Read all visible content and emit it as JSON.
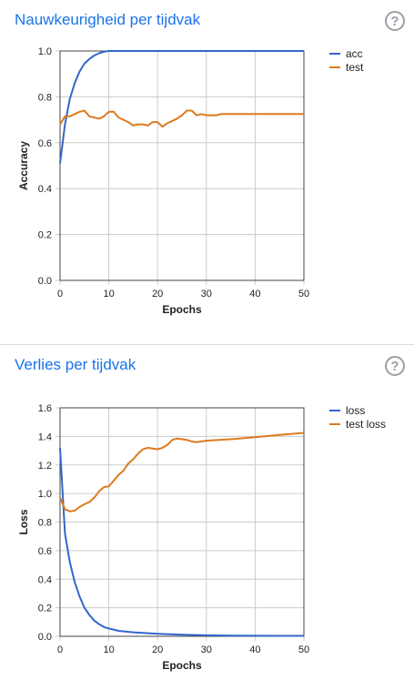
{
  "charts": [
    {
      "title": "Nauwkeurigheid per tijdvak",
      "help_icon": "help-circle-icon",
      "chart_data": {
        "type": "line",
        "xlabel": "Epochs",
        "ylabel": "Accuracy",
        "xlim": [
          0,
          50
        ],
        "ylim": [
          0,
          1.0
        ],
        "xticks": [
          "0",
          "10",
          "20",
          "30",
          "40",
          "50"
        ],
        "yticks": [
          "0.0",
          "0.2",
          "0.4",
          "0.6",
          "0.8",
          "1.0"
        ],
        "grid": true,
        "legend_position": "top-right",
        "series": [
          {
            "name": "acc",
            "color": "#3366cc",
            "points": [
              [
                0,
                0.51
              ],
              [
                1,
                0.68
              ],
              [
                2,
                0.79
              ],
              [
                3,
                0.86
              ],
              [
                4,
                0.91
              ],
              [
                5,
                0.945
              ],
              [
                6,
                0.965
              ],
              [
                7,
                0.98
              ],
              [
                8,
                0.99
              ],
              [
                9,
                0.997
              ],
              [
                10,
                1.0
              ],
              [
                15,
                1.0
              ],
              [
                20,
                1.0
              ],
              [
                25,
                1.0
              ],
              [
                30,
                1.0
              ],
              [
                35,
                1.0
              ],
              [
                40,
                1.0
              ],
              [
                45,
                1.0
              ],
              [
                50,
                1.0
              ]
            ]
          },
          {
            "name": "test",
            "color": "#dd7a1f",
            "points": [
              [
                0,
                0.68
              ],
              [
                1,
                0.715
              ],
              [
                2,
                0.715
              ],
              [
                3,
                0.725
              ],
              [
                4,
                0.735
              ],
              [
                5,
                0.74
              ],
              [
                6,
                0.715
              ],
              [
                7,
                0.71
              ],
              [
                8,
                0.705
              ],
              [
                9,
                0.715
              ],
              [
                10,
                0.735
              ],
              [
                11,
                0.735
              ],
              [
                12,
                0.71
              ],
              [
                13,
                0.7
              ],
              [
                14,
                0.69
              ],
              [
                15,
                0.675
              ],
              [
                16,
                0.68
              ],
              [
                17,
                0.68
              ],
              [
                18,
                0.675
              ],
              [
                19,
                0.69
              ],
              [
                20,
                0.69
              ],
              [
                21,
                0.67
              ],
              [
                22,
                0.685
              ],
              [
                23,
                0.695
              ],
              [
                24,
                0.705
              ],
              [
                25,
                0.72
              ],
              [
                26,
                0.74
              ],
              [
                27,
                0.74
              ],
              [
                28,
                0.72
              ],
              [
                29,
                0.725
              ],
              [
                30,
                0.72
              ],
              [
                31,
                0.72
              ],
              [
                32,
                0.72
              ],
              [
                33,
                0.725
              ],
              [
                35,
                0.725
              ],
              [
                40,
                0.725
              ],
              [
                45,
                0.725
              ],
              [
                50,
                0.725
              ]
            ]
          }
        ]
      }
    },
    {
      "title": "Verlies per tijdvak",
      "help_icon": "help-circle-icon",
      "chart_data": {
        "type": "line",
        "xlabel": "Epochs",
        "ylabel": "Loss",
        "xlim": [
          0,
          50
        ],
        "ylim": [
          0,
          1.6
        ],
        "xticks": [
          "0",
          "10",
          "20",
          "30",
          "40",
          "50"
        ],
        "yticks": [
          "0.0",
          "0.2",
          "0.4",
          "0.6",
          "0.8",
          "1.0",
          "1.2",
          "1.4",
          "1.6"
        ],
        "grid": true,
        "legend_position": "top-right",
        "series": [
          {
            "name": "loss",
            "color": "#3366cc",
            "points": [
              [
                0,
                1.32
              ],
              [
                1,
                0.72
              ],
              [
                2,
                0.52
              ],
              [
                3,
                0.38
              ],
              [
                4,
                0.28
              ],
              [
                5,
                0.2
              ],
              [
                6,
                0.15
              ],
              [
                7,
                0.11
              ],
              [
                8,
                0.085
              ],
              [
                9,
                0.065
              ],
              [
                10,
                0.055
              ],
              [
                12,
                0.038
              ],
              [
                15,
                0.028
              ],
              [
                20,
                0.018
              ],
              [
                25,
                0.011
              ],
              [
                30,
                0.007
              ],
              [
                35,
                0.005
              ],
              [
                40,
                0.004
              ],
              [
                45,
                0.003
              ],
              [
                50,
                0.003
              ]
            ]
          },
          {
            "name": "test loss",
            "color": "#dd7a1f",
            "points": [
              [
                0,
                0.97
              ],
              [
                1,
                0.89
              ],
              [
                2,
                0.875
              ],
              [
                3,
                0.88
              ],
              [
                4,
                0.905
              ],
              [
                5,
                0.925
              ],
              [
                6,
                0.94
              ],
              [
                7,
                0.97
              ],
              [
                8,
                1.015
              ],
              [
                9,
                1.045
              ],
              [
                10,
                1.05
              ],
              [
                11,
                1.09
              ],
              [
                12,
                1.13
              ],
              [
                13,
                1.16
              ],
              [
                14,
                1.21
              ],
              [
                15,
                1.24
              ],
              [
                16,
                1.28
              ],
              [
                17,
                1.31
              ],
              [
                18,
                1.32
              ],
              [
                19,
                1.315
              ],
              [
                20,
                1.31
              ],
              [
                21,
                1.32
              ],
              [
                22,
                1.34
              ],
              [
                23,
                1.375
              ],
              [
                24,
                1.385
              ],
              [
                25,
                1.38
              ],
              [
                26,
                1.375
              ],
              [
                27,
                1.365
              ],
              [
                28,
                1.36
              ],
              [
                29,
                1.365
              ],
              [
                30,
                1.37
              ],
              [
                35,
                1.38
              ],
              [
                40,
                1.395
              ],
              [
                45,
                1.41
              ],
              [
                50,
                1.425
              ]
            ]
          }
        ]
      }
    }
  ]
}
